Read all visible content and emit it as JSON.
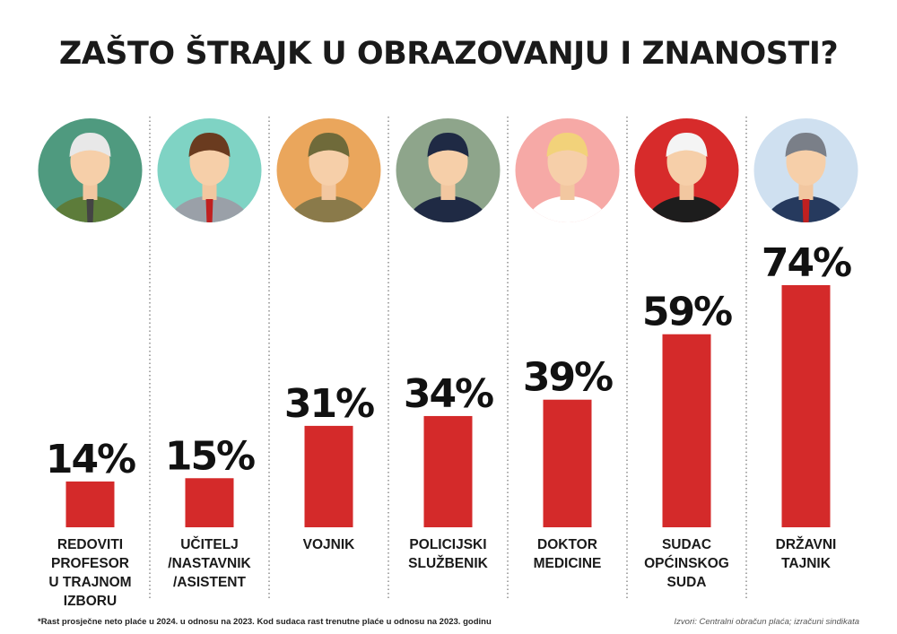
{
  "chart_data": {
    "type": "bar",
    "title": "ZAŠTO ŠTRAJK U OBRAZOVANJU  I ZNANOSTI?",
    "categories": [
      [
        "REDOVITI",
        "PROFESOR",
        "U TRAJNOM",
        "IZBORU"
      ],
      [
        "UČITELJ",
        "/NASTAVNIK",
        "/ASISTENT"
      ],
      [
        "VOJNIK"
      ],
      [
        "POLICIJSKI",
        "SLUŽBENIK"
      ],
      [
        "DOKTOR",
        "MEDICINE"
      ],
      [
        "SUDAC",
        "OPĆINSKOG",
        "SUDA"
      ],
      [
        "DRŽAVNI",
        "TAJNIK"
      ]
    ],
    "values": [
      14,
      15,
      31,
      34,
      39,
      59,
      74
    ],
    "data_labels": [
      "14%",
      "15%",
      "31%",
      "34%",
      "39%",
      "59%",
      "74%"
    ],
    "unit": "%",
    "ylim": [
      0,
      80
    ],
    "bar_color": "#d42a2a",
    "avatar_colors": [
      "#4f9a7f",
      "#7fd3c4",
      "#eaa65c",
      "#8ea58b",
      "#f6a9a6",
      "#d72b2b",
      "#cfe0f0"
    ],
    "icons": [
      "professor-icon",
      "teacher-icon",
      "soldier-icon",
      "police-officer-icon",
      "doctor-icon",
      "judge-icon",
      "state-secretary-icon"
    ],
    "grid": false
  },
  "footnote": "*Rast prosječne neto plaće u 2024. u odnosu na 2023. Kod sudaca rast trenutne plaće u odnosu na 2023. godinu",
  "source": "Izvori: Centralni obračun plaća; izračuni sindikata"
}
